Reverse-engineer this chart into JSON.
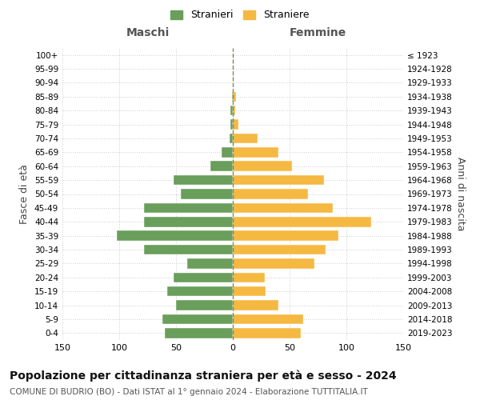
{
  "age_groups": [
    "0-4",
    "5-9",
    "10-14",
    "15-19",
    "20-24",
    "25-29",
    "30-34",
    "35-39",
    "40-44",
    "45-49",
    "50-54",
    "55-59",
    "60-64",
    "65-69",
    "70-74",
    "75-79",
    "80-84",
    "85-89",
    "90-94",
    "95-99",
    "100+"
  ],
  "birth_years": [
    "2019-2023",
    "2014-2018",
    "2009-2013",
    "2004-2008",
    "1999-2003",
    "1994-1998",
    "1989-1993",
    "1984-1988",
    "1979-1983",
    "1974-1978",
    "1969-1973",
    "1964-1968",
    "1959-1963",
    "1954-1958",
    "1949-1953",
    "1944-1948",
    "1939-1943",
    "1934-1938",
    "1929-1933",
    "1924-1928",
    "≤ 1923"
  ],
  "males": [
    60,
    62,
    50,
    58,
    52,
    40,
    78,
    102,
    78,
    78,
    46,
    52,
    20,
    10,
    3,
    2,
    2,
    1,
    0,
    0,
    0
  ],
  "females": [
    60,
    62,
    40,
    29,
    28,
    72,
    82,
    93,
    122,
    88,
    66,
    80,
    52,
    40,
    22,
    5,
    2,
    3,
    0,
    0,
    0
  ],
  "male_color": "#6a9e5b",
  "female_color": "#f5b942",
  "grid_color": "#cccccc",
  "center_line_color": "#888855",
  "xlim": 150,
  "title": "Popolazione per cittadinanza straniera per età e sesso - 2024",
  "subtitle": "COMUNE DI BUDRIO (BO) - Dati ISTAT al 1° gennaio 2024 - Elaborazione TUTTITALIA.IT",
  "xlabel_left": "Maschi",
  "xlabel_right": "Femmine",
  "ylabel_left": "Fasce di età",
  "ylabel_right": "Anni di nascita",
  "legend_males": "Stranieri",
  "legend_females": "Straniere",
  "bg_color": "#ffffff",
  "title_fontsize": 10,
  "subtitle_fontsize": 7.5
}
